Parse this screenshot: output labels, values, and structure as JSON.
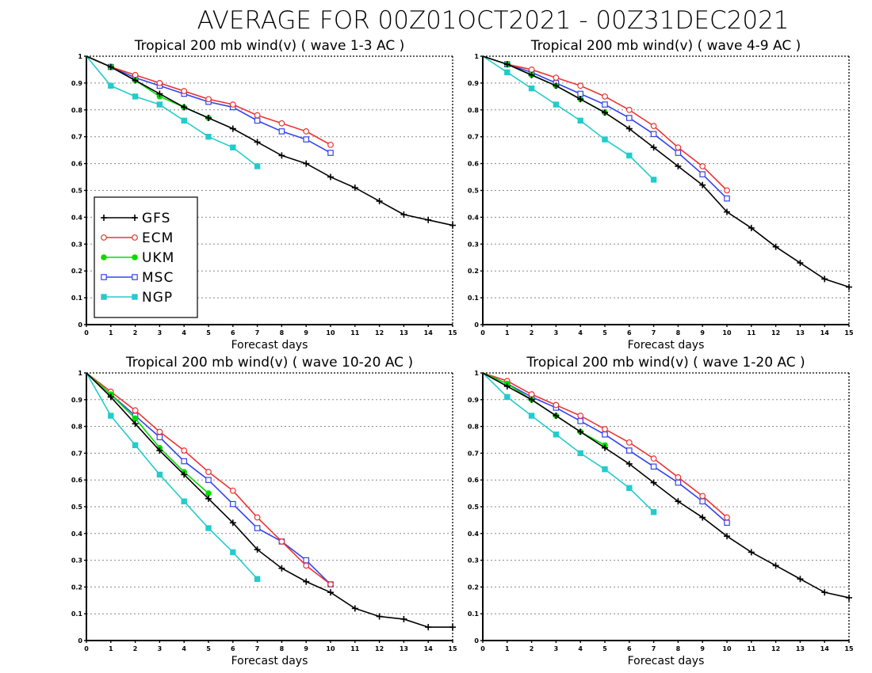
{
  "figure_title": "AVERAGE FOR 00Z01OCT2021 - 00Z31DEC2021",
  "colors": {
    "GFS": "#000000",
    "ECM": "#ee3333",
    "UKM": "#00dd00",
    "MSC": "#3344ee",
    "NGP": "#22cccc"
  },
  "markers": {
    "GFS": "plus",
    "ECM": "open-circle",
    "UKM": "filled-circle",
    "MSC": "open-square",
    "NGP": "filled-square"
  },
  "chart_data": [
    {
      "type": "line",
      "title": "Tropical 200 mb wind(v) ( wave 1-3 AC )",
      "xlabel": "Forecast days",
      "ylabel": "",
      "xlim": [
        0,
        15
      ],
      "ylim": [
        0,
        1
      ],
      "xticks": [
        "0",
        "1",
        "2",
        "3",
        "4",
        "5",
        "6",
        "7",
        "8",
        "9",
        "10",
        "11",
        "12",
        "13",
        "14",
        "15"
      ],
      "yticks": [
        "0",
        "0.1",
        "0.2",
        "0.3",
        "0.4",
        "0.5",
        "0.6",
        "0.7",
        "0.8",
        "0.9",
        "1"
      ],
      "grid": "horizontal dotted",
      "legend": {
        "placement": "left-middle",
        "entries": [
          "GFS",
          "ECM",
          "UKM",
          "MSC",
          "NGP"
        ]
      },
      "series": [
        {
          "name": "GFS",
          "x": [
            0,
            1,
            2,
            3,
            4,
            5,
            6,
            7,
            8,
            9,
            10,
            11,
            12,
            13,
            14,
            15
          ],
          "values": [
            1,
            0.96,
            0.91,
            0.86,
            0.81,
            0.77,
            0.73,
            0.68,
            0.63,
            0.6,
            0.55,
            0.51,
            0.46,
            0.41,
            0.39,
            0.37
          ]
        },
        {
          "name": "ECM",
          "x": [
            0,
            1,
            2,
            3,
            4,
            5,
            6,
            7,
            8,
            9,
            10
          ],
          "values": [
            1,
            0.96,
            0.93,
            0.9,
            0.87,
            0.84,
            0.82,
            0.78,
            0.75,
            0.72,
            0.67
          ]
        },
        {
          "name": "UKM",
          "x": [
            0,
            1,
            2,
            3,
            4,
            5
          ],
          "values": [
            1,
            0.96,
            0.91,
            0.85,
            0.81,
            0.77
          ]
        },
        {
          "name": "MSC",
          "x": [
            0,
            1,
            2,
            3,
            4,
            5,
            6,
            7,
            8,
            9,
            10
          ],
          "values": [
            1,
            0.96,
            0.92,
            0.89,
            0.86,
            0.83,
            0.81,
            0.76,
            0.72,
            0.69,
            0.64
          ]
        },
        {
          "name": "NGP",
          "x": [
            0,
            1,
            2,
            3,
            4,
            5,
            6,
            7
          ],
          "values": [
            1,
            0.89,
            0.85,
            0.82,
            0.76,
            0.7,
            0.66,
            0.59
          ]
        }
      ]
    },
    {
      "type": "line",
      "title": "Tropical 200 mb wind(v) ( wave 4-9 AC )",
      "xlabel": "Forecast days",
      "ylabel": "",
      "xlim": [
        0,
        15
      ],
      "ylim": [
        0,
        1
      ],
      "xticks": [
        "0",
        "1",
        "2",
        "3",
        "4",
        "5",
        "6",
        "7",
        "8",
        "9",
        "10",
        "11",
        "12",
        "13",
        "14",
        "15"
      ],
      "yticks": [
        "0",
        "0.1",
        "0.2",
        "0.3",
        "0.4",
        "0.5",
        "0.6",
        "0.7",
        "0.8",
        "0.9",
        "1"
      ],
      "grid": "horizontal dotted",
      "series": [
        {
          "name": "GFS",
          "x": [
            0,
            1,
            2,
            3,
            4,
            5,
            6,
            7,
            8,
            9,
            10,
            11,
            12,
            13,
            14,
            15
          ],
          "values": [
            1,
            0.97,
            0.93,
            0.89,
            0.84,
            0.79,
            0.73,
            0.66,
            0.59,
            0.52,
            0.42,
            0.36,
            0.29,
            0.23,
            0.17,
            0.14
          ]
        },
        {
          "name": "ECM",
          "x": [
            0,
            1,
            2,
            3,
            4,
            5,
            6,
            7,
            8,
            9,
            10
          ],
          "values": [
            1,
            0.97,
            0.95,
            0.92,
            0.89,
            0.85,
            0.8,
            0.74,
            0.66,
            0.59,
            0.5
          ]
        },
        {
          "name": "UKM",
          "x": [
            0,
            1,
            2,
            3,
            4,
            5
          ],
          "values": [
            1,
            0.97,
            0.93,
            0.89,
            0.84,
            0.79
          ]
        },
        {
          "name": "MSC",
          "x": [
            0,
            1,
            2,
            3,
            4,
            5,
            6,
            7,
            8,
            9,
            10
          ],
          "values": [
            1,
            0.97,
            0.94,
            0.9,
            0.86,
            0.82,
            0.77,
            0.71,
            0.64,
            0.56,
            0.47
          ]
        },
        {
          "name": "NGP",
          "x": [
            0,
            1,
            2,
            3,
            4,
            5,
            6,
            7
          ],
          "values": [
            1,
            0.94,
            0.88,
            0.82,
            0.76,
            0.69,
            0.63,
            0.54
          ]
        }
      ]
    },
    {
      "type": "line",
      "title": "Tropical 200 mb wind(v) ( wave 10-20 AC )",
      "xlabel": "Forecast days",
      "ylabel": "",
      "xlim": [
        0,
        15
      ],
      "ylim": [
        0,
        1
      ],
      "xticks": [
        "0",
        "1",
        "2",
        "3",
        "4",
        "5",
        "6",
        "7",
        "8",
        "9",
        "10",
        "11",
        "12",
        "13",
        "14",
        "15"
      ],
      "yticks": [
        "0",
        "0.1",
        "0.2",
        "0.3",
        "0.4",
        "0.5",
        "0.6",
        "0.7",
        "0.8",
        "0.9",
        "1"
      ],
      "grid": "horizontal dotted",
      "series": [
        {
          "name": "GFS",
          "x": [
            0,
            1,
            2,
            3,
            4,
            5,
            6,
            7,
            8,
            9,
            10,
            11,
            12,
            13,
            14,
            15
          ],
          "values": [
            1,
            0.91,
            0.81,
            0.71,
            0.62,
            0.53,
            0.44,
            0.34,
            0.27,
            0.22,
            0.18,
            0.12,
            0.09,
            0.08,
            0.05,
            0.05
          ]
        },
        {
          "name": "ECM",
          "x": [
            0,
            1,
            2,
            3,
            4,
            5,
            6,
            7,
            8,
            9,
            10
          ],
          "values": [
            1,
            0.93,
            0.86,
            0.78,
            0.71,
            0.63,
            0.56,
            0.46,
            0.37,
            0.28,
            0.21
          ]
        },
        {
          "name": "UKM",
          "x": [
            0,
            1,
            2,
            3,
            4,
            5
          ],
          "values": [
            1,
            0.92,
            0.83,
            0.72,
            0.63,
            0.55
          ]
        },
        {
          "name": "MSC",
          "x": [
            0,
            1,
            2,
            3,
            4,
            5,
            6,
            7,
            8,
            9,
            10
          ],
          "values": [
            1,
            0.92,
            0.84,
            0.76,
            0.67,
            0.6,
            0.51,
            0.42,
            0.37,
            0.3,
            0.21
          ]
        },
        {
          "name": "NGP",
          "x": [
            0,
            1,
            2,
            3,
            4,
            5,
            6,
            7
          ],
          "values": [
            1,
            0.84,
            0.73,
            0.62,
            0.52,
            0.42,
            0.33,
            0.23
          ]
        }
      ]
    },
    {
      "type": "line",
      "title": "Tropical 200 mb wind(v) ( wave 1-20 AC )",
      "xlabel": "Forecast days",
      "ylabel": "",
      "xlim": [
        0,
        15
      ],
      "ylim": [
        0,
        1
      ],
      "xticks": [
        "0",
        "1",
        "2",
        "3",
        "4",
        "5",
        "6",
        "7",
        "8",
        "9",
        "10",
        "11",
        "12",
        "13",
        "14",
        "15"
      ],
      "yticks": [
        "0",
        "0.1",
        "0.2",
        "0.3",
        "0.4",
        "0.5",
        "0.6",
        "0.7",
        "0.8",
        "0.9",
        "1"
      ],
      "grid": "horizontal dotted",
      "series": [
        {
          "name": "GFS",
          "x": [
            0,
            1,
            2,
            3,
            4,
            5,
            6,
            7,
            8,
            9,
            10,
            11,
            12,
            13,
            14,
            15
          ],
          "values": [
            1,
            0.95,
            0.9,
            0.84,
            0.78,
            0.72,
            0.66,
            0.59,
            0.52,
            0.46,
            0.39,
            0.33,
            0.28,
            0.23,
            0.18,
            0.16
          ]
        },
        {
          "name": "ECM",
          "x": [
            0,
            1,
            2,
            3,
            4,
            5,
            6,
            7,
            8,
            9,
            10
          ],
          "values": [
            1,
            0.97,
            0.92,
            0.88,
            0.84,
            0.79,
            0.74,
            0.68,
            0.61,
            0.54,
            0.46
          ]
        },
        {
          "name": "UKM",
          "x": [
            0,
            1,
            2,
            3,
            4,
            5
          ],
          "values": [
            1,
            0.96,
            0.9,
            0.84,
            0.78,
            0.73
          ]
        },
        {
          "name": "MSC",
          "x": [
            0,
            1,
            2,
            3,
            4,
            5,
            6,
            7,
            8,
            9,
            10
          ],
          "values": [
            1,
            0.96,
            0.91,
            0.87,
            0.82,
            0.77,
            0.71,
            0.65,
            0.59,
            0.52,
            0.44
          ]
        },
        {
          "name": "NGP",
          "x": [
            0,
            1,
            2,
            3,
            4,
            5,
            6,
            7
          ],
          "values": [
            1,
            0.91,
            0.84,
            0.77,
            0.7,
            0.64,
            0.57,
            0.48
          ]
        }
      ]
    }
  ]
}
